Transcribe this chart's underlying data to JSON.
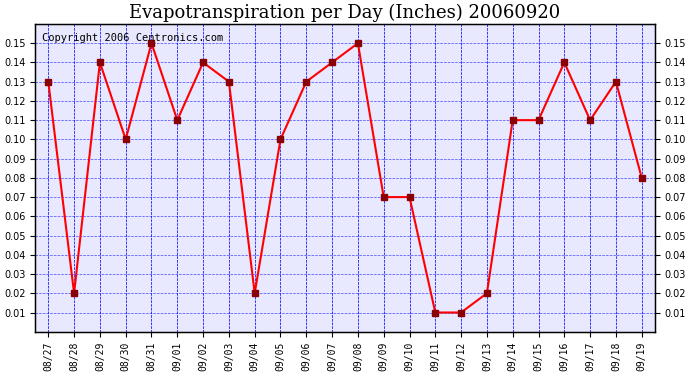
{
  "title": "Evapotranspiration per Day (Inches) 20060920",
  "copyright_text": "Copyright 2006 Centronics.com",
  "dates": [
    "08/27",
    "08/28",
    "08/29",
    "08/30",
    "08/31",
    "09/01",
    "09/02",
    "09/03",
    "09/04",
    "09/05",
    "09/06",
    "09/07",
    "09/08",
    "09/09",
    "09/10",
    "09/11",
    "09/12",
    "09/13",
    "09/14",
    "09/15",
    "09/16",
    "09/17",
    "09/18",
    "09/19"
  ],
  "values": [
    0.13,
    0.02,
    0.14,
    0.1,
    0.15,
    0.11,
    0.14,
    0.13,
    0.02,
    0.1,
    0.13,
    0.14,
    0.15,
    0.07,
    0.07,
    0.01,
    0.01,
    0.02,
    0.11,
    0.11,
    0.14,
    0.11,
    0.13,
    0.08
  ],
  "ylim": [
    0.0,
    0.16
  ],
  "yticks": [
    0.01,
    0.02,
    0.03,
    0.04,
    0.05,
    0.06,
    0.07,
    0.08,
    0.09,
    0.1,
    0.11,
    0.12,
    0.13,
    0.14,
    0.15
  ],
  "line_color": "red",
  "marker": "s",
  "marker_size": 4,
  "marker_color": "darkred",
  "grid_color": "blue",
  "bg_color": "white",
  "plot_bg_color": "#e8e8ff",
  "title_fontsize": 13,
  "copyright_fontsize": 7.5
}
